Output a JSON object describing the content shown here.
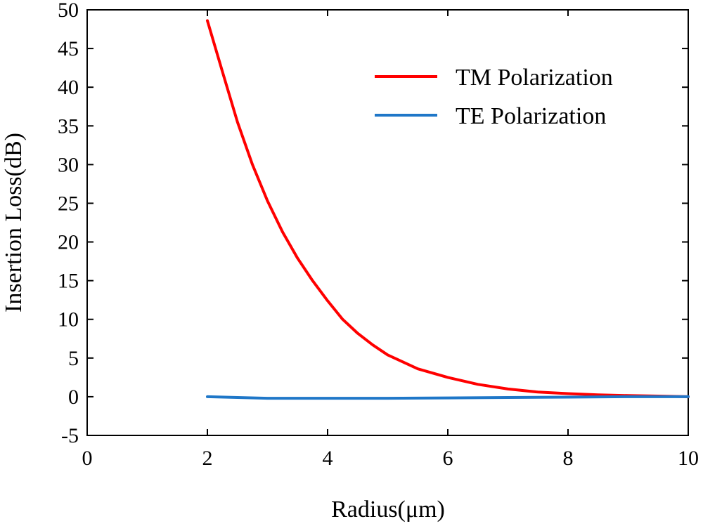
{
  "chart_data": {
    "type": "line",
    "title": "",
    "xlabel": "Radius(μm)",
    "ylabel": "Insertion Loss(dB)",
    "xlim": [
      0,
      10
    ],
    "ylim": [
      -5,
      50
    ],
    "x_ticks": [
      0,
      2,
      4,
      6,
      8,
      10
    ],
    "y_ticks": [
      -5,
      0,
      5,
      10,
      15,
      20,
      25,
      30,
      35,
      40,
      45,
      50
    ],
    "grid": false,
    "legend_position": "top-right",
    "series": [
      {
        "name": "TM Polarization",
        "color": "#ff0000",
        "x": [
          2.0,
          2.25,
          2.5,
          2.75,
          3.0,
          3.25,
          3.5,
          3.75,
          4.0,
          4.25,
          4.5,
          4.75,
          5.0,
          5.5,
          6.0,
          6.5,
          7.0,
          7.5,
          8.0,
          8.5,
          9.0,
          9.5,
          10.0
        ],
        "y": [
          48.6,
          42.0,
          35.5,
          30.0,
          25.3,
          21.3,
          17.9,
          15.0,
          12.4,
          10.0,
          8.2,
          6.7,
          5.4,
          3.6,
          2.5,
          1.6,
          1.0,
          0.6,
          0.4,
          0.25,
          0.15,
          0.08,
          0.0
        ]
      },
      {
        "name": "TE Polarization",
        "color": "#1f77c8",
        "x": [
          2.0,
          2.5,
          3.0,
          3.5,
          4.0,
          5.0,
          6.0,
          7.0,
          8.0,
          9.0,
          10.0
        ],
        "y": [
          0.0,
          -0.1,
          -0.2,
          -0.2,
          -0.2,
          -0.2,
          -0.15,
          -0.1,
          -0.05,
          0.0,
          0.0
        ]
      }
    ]
  }
}
